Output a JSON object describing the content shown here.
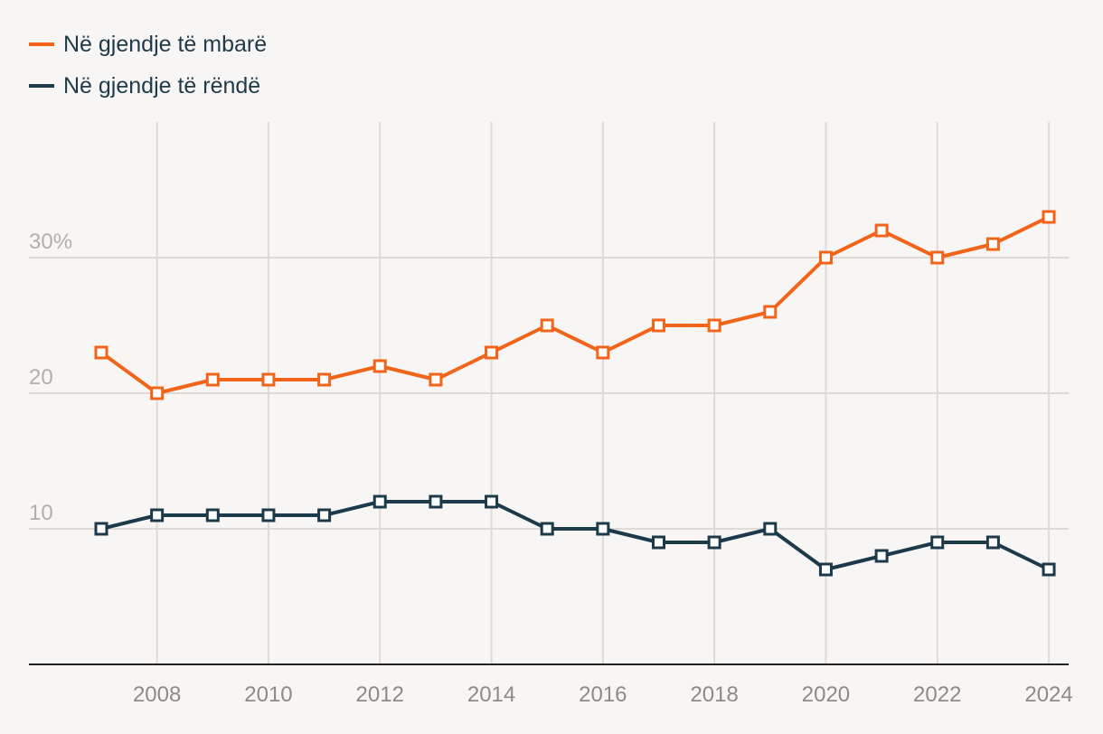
{
  "chart_data": {
    "type": "line",
    "title": "",
    "xlabel": "",
    "ylabel": "",
    "x": [
      2007,
      2008,
      2009,
      2010,
      2011,
      2012,
      2013,
      2014,
      2015,
      2016,
      2017,
      2018,
      2019,
      2020,
      2021,
      2022,
      2023,
      2024
    ],
    "x_tick_labels": [
      "2008",
      "2010",
      "2012",
      "2014",
      "2016",
      "2018",
      "2020",
      "2022",
      "2024"
    ],
    "y_tick_labels": [
      "10",
      "20",
      "30%"
    ],
    "ylim": [
      0,
      40
    ],
    "grid": true,
    "legend_position": "top-left",
    "series": [
      {
        "name": "Në gjendje të mbarë",
        "color": "#f26419",
        "values": [
          23,
          20,
          21,
          21,
          21,
          22,
          21,
          23,
          25,
          23,
          25,
          25,
          26,
          30,
          32,
          30,
          31,
          33
        ]
      },
      {
        "name": "Në gjendje të rëndë",
        "color": "#1d3a4b",
        "values": [
          10,
          11,
          11,
          11,
          11,
          12,
          12,
          12,
          10,
          10,
          9,
          9,
          10,
          7,
          8,
          9,
          9,
          7
        ]
      }
    ]
  }
}
